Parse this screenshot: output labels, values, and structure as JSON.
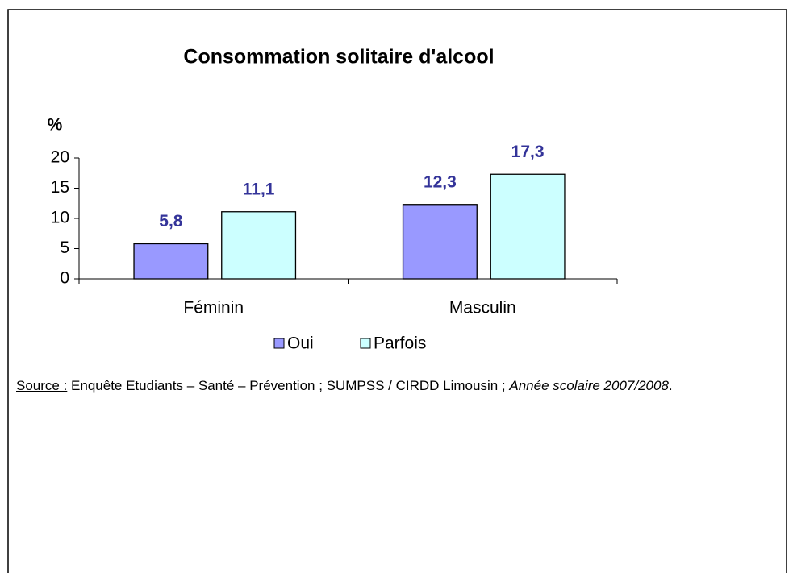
{
  "chart_data": {
    "type": "bar",
    "title": "Consommation solitaire d'alcool",
    "y_label": "%",
    "categories": [
      "Féminin",
      "Masculin"
    ],
    "series": [
      {
        "name": "Oui",
        "color": "#9999ff",
        "values": [
          5.8,
          12.3
        ],
        "value_labels": [
          "5,8",
          "12,3"
        ]
      },
      {
        "name": "Parfois",
        "color": "#ccffff",
        "values": [
          11.1,
          17.3
        ],
        "value_labels": [
          "11,1",
          "17,3"
        ]
      }
    ],
    "ylim": [
      0,
      20
    ],
    "yticks": [
      0,
      5,
      10,
      15,
      20
    ],
    "grid": false,
    "legend": "bottom"
  },
  "source": {
    "label": "Source :",
    "text": " Enquête Etudiants – Santé – Prévention ; SUMPSS / CIRDD Limousin ; ",
    "period": "Année scolaire 2007/2008",
    "end": "."
  }
}
